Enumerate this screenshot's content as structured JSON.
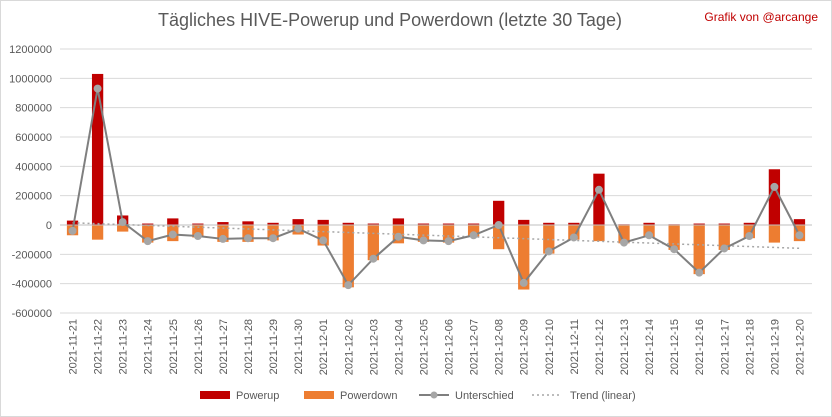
{
  "chart_data": {
    "type": "bar",
    "title": "Tägliches HIVE-Powerup und Powerdown (letzte 30 Tage)",
    "credit": "Grafik von @arcange",
    "categories": [
      "2021-11-21",
      "2021-11-22",
      "2021-11-23",
      "2021-11-24",
      "2021-11-25",
      "2021-11-26",
      "2021-11-27",
      "2021-11-28",
      "2021-11-29",
      "2021-11-30",
      "2021-12-01",
      "2021-12-02",
      "2021-12-03",
      "2021-12-04",
      "2021-12-05",
      "2021-12-06",
      "2021-12-07",
      "2021-12-08",
      "2021-12-09",
      "2021-12-10",
      "2021-12-11",
      "2021-12-12",
      "2021-12-13",
      "2021-12-14",
      "2021-12-15",
      "2021-12-16",
      "2021-12-17",
      "2021-12-18",
      "2021-12-19",
      "2021-12-20"
    ],
    "ylim": [
      -600000,
      1200000
    ],
    "yticks": [
      1200000,
      1000000,
      800000,
      600000,
      400000,
      200000,
      0,
      -200000,
      -400000,
      -600000
    ],
    "ytick_labels": [
      "1200000",
      "1000000",
      "800000",
      "600000",
      "400000",
      "200000",
      "0",
      "-200000",
      "-400000",
      "-600000"
    ],
    "grid": true,
    "legend_position": "bottom",
    "series": [
      {
        "name": "Powerup",
        "type": "bar",
        "color": "#c00000",
        "values": [
          30000,
          1030000,
          65000,
          10000,
          45000,
          10000,
          20000,
          25000,
          15000,
          40000,
          35000,
          15000,
          10000,
          45000,
          10000,
          10000,
          10000,
          165000,
          35000,
          15000,
          15000,
          350000,
          5000,
          15000,
          5000,
          10000,
          10000,
          15000,
          380000,
          40000
        ]
      },
      {
        "name": "Powerdown",
        "type": "bar",
        "color": "#ed7d31",
        "values": [
          -70000,
          -100000,
          -45000,
          -120000,
          -110000,
          -85000,
          -115000,
          -115000,
          -105000,
          -65000,
          -140000,
          -425000,
          -240000,
          -125000,
          -115000,
          -120000,
          -80000,
          -165000,
          -440000,
          -195000,
          -100000,
          -110000,
          -125000,
          -85000,
          -170000,
          -335000,
          -170000,
          -90000,
          -120000,
          -110000
        ]
      },
      {
        "name": "Unterschied",
        "type": "line",
        "color": "#7f7f7f",
        "values": [
          -40000,
          930000,
          20000,
          -110000,
          -65000,
          -75000,
          -95000,
          -90000,
          -90000,
          -25000,
          -105000,
          -410000,
          -230000,
          -80000,
          -105000,
          -110000,
          -70000,
          0,
          -395000,
          -180000,
          -85000,
          240000,
          -120000,
          -70000,
          -165000,
          -325000,
          -160000,
          -75000,
          260000,
          -70000
        ]
      },
      {
        "name": "Trend (linear)",
        "type": "trend",
        "color": "#a6a6a6",
        "values": [
          15000,
          9000,
          3000,
          -3000,
          -9000,
          -15000,
          -21000,
          -27000,
          -33000,
          -39000,
          -45000,
          -51000,
          -57000,
          -63000,
          -69000,
          -75000,
          -81000,
          -87000,
          -93000,
          -99000,
          -105000,
          -111000,
          -117000,
          -123000,
          -129000,
          -135000,
          -141000,
          -147000,
          -153000,
          -159000
        ]
      }
    ]
  }
}
